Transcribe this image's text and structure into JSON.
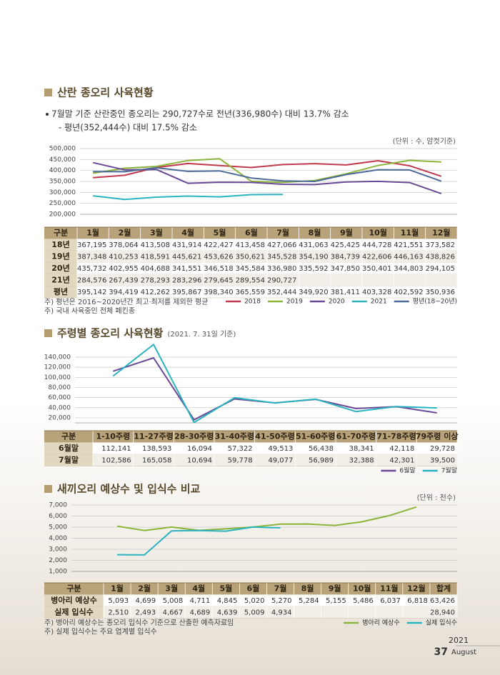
{
  "chart_data": [
    {
      "type": "line",
      "title": "산란 종오리 사육현황",
      "bullets": [
        "7월말 기준 산란중인 종오리는 290,727수로 전년(336,980수) 대비 13.7% 감소",
        "- 평년(352,444수) 대비 17.5% 감소"
      ],
      "unit": "(단위 : 수, 암컷기준)",
      "table_header": "구분",
      "categories": [
        "1월",
        "2월",
        "3월",
        "4월",
        "5월",
        "6월",
        "7월",
        "8월",
        "9월",
        "10월",
        "11월",
        "12월"
      ],
      "ylim": [
        200000,
        500000
      ],
      "yticks": [
        {
          "value": 200000,
          "label": "200,000"
        },
        {
          "value": 250000,
          "label": "250,000"
        },
        {
          "value": 300000,
          "label": "300,000"
        },
        {
          "value": 350000,
          "label": "350,000"
        },
        {
          "value": 400000,
          "label": "400,000"
        },
        {
          "value": 450000,
          "label": "450,000"
        },
        {
          "value": 500000,
          "label": "500,000"
        }
      ],
      "grid": true,
      "series": [
        {
          "name": "2018",
          "row_label": "18년",
          "color": "#c0394d",
          "values": [
            367195,
            378064,
            413508,
            431914,
            422427,
            413458,
            427066,
            431063,
            425425,
            444728,
            421551,
            373582
          ],
          "value_labels": [
            "367,195",
            "378,064",
            "413,508",
            "431,914",
            "422,427",
            "413,458",
            "427,066",
            "431,063",
            "425,425",
            "444,728",
            "421,551",
            "373,582"
          ]
        },
        {
          "name": "2019",
          "row_label": "19년",
          "color": "#8cb43c",
          "values": [
            387348,
            410253,
            418591,
            445621,
            453626,
            350621,
            345528,
            354190,
            384739,
            422606,
            446163,
            438826
          ],
          "value_labels": [
            "387,348",
            "410,253",
            "418,591",
            "445,621",
            "453,626",
            "350,621",
            "345,528",
            "354,190",
            "384,739",
            "422,606",
            "446,163",
            "438,826"
          ]
        },
        {
          "name": "2020",
          "row_label": "20년",
          "color": "#6a4a96",
          "values": [
            435732,
            402955,
            404688,
            341551,
            346518,
            345584,
            336980,
            335592,
            347850,
            350401,
            344803,
            294105
          ],
          "value_labels": [
            "435,732",
            "402,955",
            "404,688",
            "341,551",
            "346,518",
            "345,584",
            "336,980",
            "335,592",
            "347,850",
            "350,401",
            "344,803",
            "294,105"
          ]
        },
        {
          "name": "2021",
          "row_label": "21년",
          "color": "#2bb3c0",
          "values": [
            284576,
            267439,
            278293,
            283296,
            279645,
            289554,
            290727,
            null,
            null,
            null,
            null,
            null
          ],
          "value_labels": [
            "284,576",
            "267,439",
            "278,293",
            "283,296",
            "279,645",
            "289,554",
            "290,727",
            null,
            null,
            null,
            null,
            null
          ]
        },
        {
          "name": "평년(18~20년)",
          "row_label": "평년",
          "color": "#4e6a98",
          "values": [
            395142,
            394419,
            412262,
            395867,
            398340,
            365559,
            352444,
            349920,
            381411,
            403328,
            402592,
            350936
          ],
          "value_labels": [
            "395,142",
            "394,419",
            "412,262",
            "395,867",
            "398,340",
            "365,559",
            "352,444",
            "349,920",
            "381,411",
            "403,328",
            "402,592",
            "350,936"
          ]
        }
      ],
      "notes": [
        "주) 평년은 2016~2020년간 최고·최저를 제외한 평균",
        "주) 국내 사육중인 전체 페킨종"
      ]
    },
    {
      "type": "line",
      "title": "주령별 종오리 사육현황",
      "subtitle": "(2021. 7. 31일 기준)",
      "table_header": "구분",
      "categories": [
        "1-10주령",
        "11-27주령",
        "28-30주령",
        "31-40주령",
        "41-50주령",
        "51-60주령",
        "61-70주령",
        "71-78주령",
        "79주령 이상"
      ],
      "ylim": [
        10000,
        140000
      ],
      "yticks": [
        {
          "value": 20000,
          "label": "20,000"
        },
        {
          "value": 40000,
          "label": "40,000"
        },
        {
          "value": 60000,
          "label": "60,000"
        },
        {
          "value": 80000,
          "label": "80,000"
        },
        {
          "value": 100000,
          "label": "100,000"
        },
        {
          "value": 120000,
          "label": "120,000"
        },
        {
          "value": 140000,
          "label": "140,000"
        }
      ],
      "grid": true,
      "series": [
        {
          "name": "6월말",
          "color": "#6a4a96",
          "values": [
            112141,
            138593,
            16094,
            57322,
            49513,
            56438,
            38341,
            42118,
            29728
          ],
          "value_labels": [
            "112,141",
            "138,593",
            "16,094",
            "57,322",
            "49,513",
            "56,438",
            "38,341",
            "42,118",
            "29,728"
          ]
        },
        {
          "name": "7월말",
          "color": "#2bb3c0",
          "values": [
            102586,
            165058,
            10694,
            59778,
            49077,
            56989,
            32388,
            42301,
            39500
          ],
          "value_labels": [
            "102,586",
            "165,058",
            "10,694",
            "59,778",
            "49,077",
            "56,989",
            "32,388",
            "42,301",
            "39,500"
          ]
        }
      ]
    },
    {
      "type": "line",
      "title": "새끼오리 예상수 및 입식수 비교",
      "unit": "(단위 : 천수)",
      "table_header": "구분",
      "total_header": "합계",
      "categories": [
        "1월",
        "2월",
        "3월",
        "4월",
        "5월",
        "6월",
        "7월",
        "8월",
        "9월",
        "10월",
        "11월",
        "12월"
      ],
      "ylim": [
        1000,
        7000
      ],
      "yticks": [
        {
          "value": 1000,
          "label": "1,000"
        },
        {
          "value": 2000,
          "label": "2,000"
        },
        {
          "value": 3000,
          "label": "3,000"
        },
        {
          "value": 4000,
          "label": "4,000"
        },
        {
          "value": 5000,
          "label": "5,000"
        },
        {
          "value": 6000,
          "label": "6,000"
        },
        {
          "value": 7000,
          "label": "7,000"
        }
      ],
      "grid": true,
      "series": [
        {
          "name": "병아리 예상수",
          "color": "#8cb43c",
          "values": [
            5093,
            4699,
            5008,
            4711,
            4845,
            5020,
            5270,
            5284,
            5155,
            5486,
            6037,
            6818
          ],
          "value_labels": [
            "5,093",
            "4,699",
            "5,008",
            "4,711",
            "4,845",
            "5,020",
            "5,270",
            "5,284",
            "5,155",
            "5,486",
            "6,037",
            "6,818"
          ],
          "total": 63426,
          "total_label": "63,426"
        },
        {
          "name": "실제 입식수",
          "color": "#2bb3c0",
          "values": [
            2510,
            2493,
            4667,
            4689,
            4639,
            5009,
            4934,
            null,
            null,
            null,
            null,
            null
          ],
          "value_labels": [
            "2,510",
            "2,493",
            "4,667",
            "4,689",
            "4,639",
            "5,009",
            "4,934",
            null,
            null,
            null,
            null,
            null
          ],
          "total": 28940,
          "total_label": "28,940"
        }
      ],
      "notes": [
        "주) 병아리 예상수는 종오리 입식수 기준으로 산출한 예측자료임",
        "주) 실제 입식수는 주요 업계별 입식수"
      ]
    }
  ],
  "page": {
    "year": "2021",
    "number": "37",
    "month": "August"
  }
}
